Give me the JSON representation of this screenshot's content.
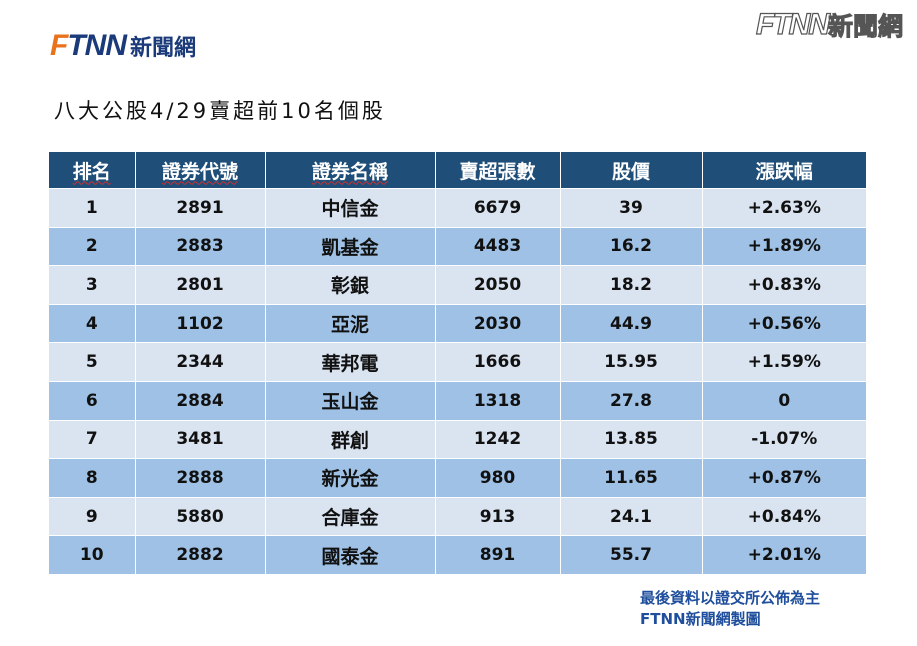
{
  "logo_left": {
    "mark_f": "F",
    "mark_rest": "TNN",
    "chinese": "新聞網"
  },
  "logo_right": {
    "mark": "FTNN",
    "chinese": "新聞網"
  },
  "title": "八大公股4/29賣超前10名個股",
  "table": {
    "headers": [
      "排名",
      "證券代號",
      "證券名稱",
      "賣超張數",
      "股價",
      "漲跌幅"
    ],
    "rows": [
      [
        "1",
        "2891",
        "中信金",
        "6679",
        "39",
        "+2.63%"
      ],
      [
        "2",
        "2883",
        "凱基金",
        "4483",
        "16.2",
        "+1.89%"
      ],
      [
        "3",
        "2801",
        "彰銀",
        "2050",
        "18.2",
        "+0.83%"
      ],
      [
        "4",
        "1102",
        "亞泥",
        "2030",
        "44.9",
        "+0.56%"
      ],
      [
        "5",
        "2344",
        "華邦電",
        "1666",
        "15.95",
        "+1.59%"
      ],
      [
        "6",
        "2884",
        "玉山金",
        "1318",
        "27.8",
        "0"
      ],
      [
        "7",
        "3481",
        "群創",
        "1242",
        "13.85",
        "-1.07%"
      ],
      [
        "8",
        "2888",
        "新光金",
        "980",
        "11.65",
        "+0.87%"
      ],
      [
        "9",
        "5880",
        "合庫金",
        "913",
        "24.1",
        "+0.84%"
      ],
      [
        "10",
        "2882",
        "國泰金",
        "891",
        "55.7",
        "+2.01%"
      ]
    ]
  },
  "footnote": {
    "line1": "最後資料以證交所公佈為主",
    "line2": "FTNN新聞網製圖"
  },
  "colors": {
    "header_bg": "#1f4e79",
    "row_light": "#dae4f1",
    "row_dark": "#9ec1e5",
    "logo_orange": "#e8731c",
    "logo_blue": "#1a3a7a",
    "footnote": "#1f4e9c"
  }
}
